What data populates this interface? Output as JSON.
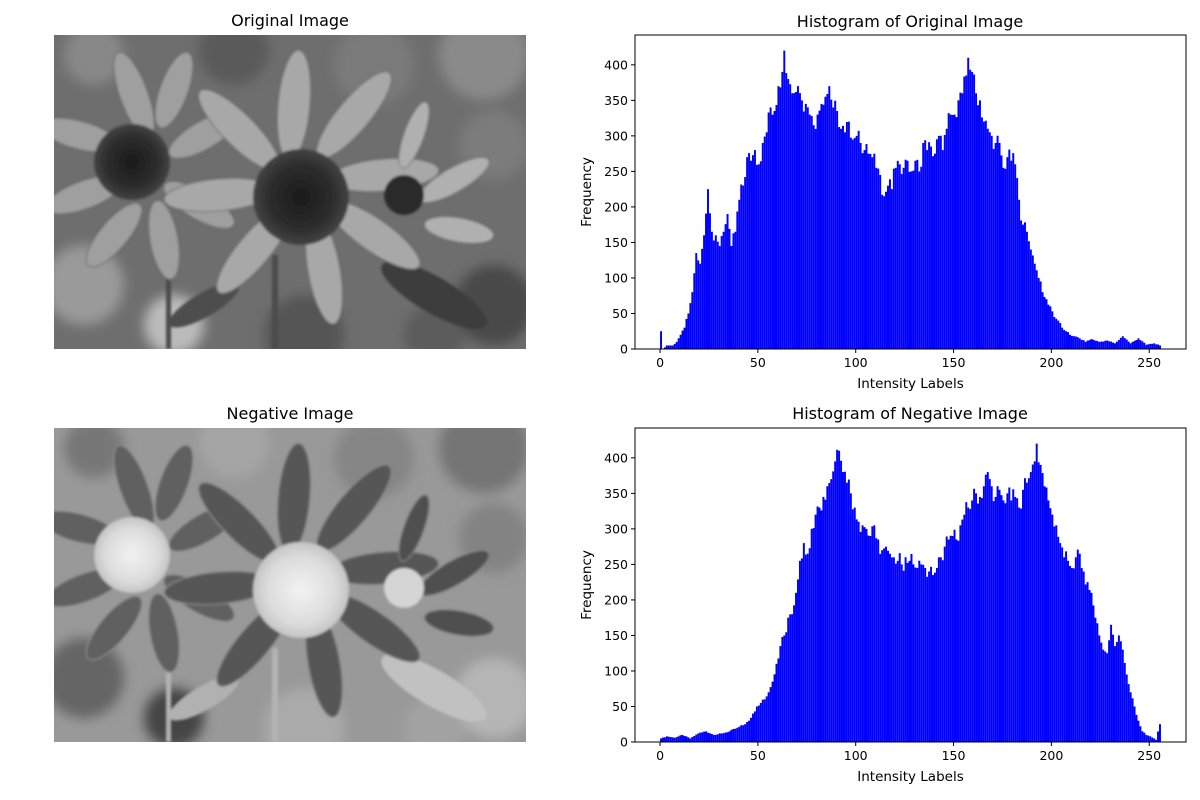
{
  "panels": {
    "original_title": "Original Image",
    "negative_title": "Negative Image",
    "hist_original_title": "Histogram of Original Image",
    "hist_negative_title": "Histogram of Negative Image"
  },
  "colors": {
    "bar": "#0000ff",
    "axis": "#000000"
  },
  "chart_data": [
    {
      "type": "bar",
      "title": "Histogram of Original Image",
      "xlabel": "Intensity Labels",
      "ylabel": "Frequency",
      "xlim": [
        -12.8,
        268.8
      ],
      "ylim": [
        0,
        442
      ],
      "xticks": [
        0,
        50,
        100,
        150,
        200,
        250
      ],
      "yticks": [
        0,
        50,
        100,
        150,
        200,
        250,
        300,
        350,
        400
      ],
      "grid": false,
      "anchors": [
        [
          0,
          25
        ],
        [
          1,
          0
        ],
        [
          3,
          5
        ],
        [
          6,
          5
        ],
        [
          8,
          10
        ],
        [
          10,
          20
        ],
        [
          12,
          30
        ],
        [
          14,
          50
        ],
        [
          16,
          80
        ],
        [
          18,
          135
        ],
        [
          20,
          120
        ],
        [
          22,
          160
        ],
        [
          24,
          225
        ],
        [
          26,
          165
        ],
        [
          28,
          160
        ],
        [
          30,
          145
        ],
        [
          32,
          165
        ],
        [
          34,
          190
        ],
        [
          36,
          145
        ],
        [
          38,
          165
        ],
        [
          40,
          210
        ],
        [
          42,
          230
        ],
        [
          44,
          270
        ],
        [
          46,
          265
        ],
        [
          48,
          280
        ],
        [
          50,
          260
        ],
        [
          52,
          290
        ],
        [
          54,
          305
        ],
        [
          56,
          340
        ],
        [
          58,
          335
        ],
        [
          60,
          370
        ],
        [
          62,
          390
        ],
        [
          63,
          420
        ],
        [
          65,
          380
        ],
        [
          67,
          360
        ],
        [
          70,
          370
        ],
        [
          72,
          350
        ],
        [
          74,
          345
        ],
        [
          76,
          330
        ],
        [
          78,
          315
        ],
        [
          80,
          330
        ],
        [
          82,
          345
        ],
        [
          84,
          355
        ],
        [
          86,
          370
        ],
        [
          88,
          340
        ],
        [
          90,
          335
        ],
        [
          92,
          310
        ],
        [
          94,
          305
        ],
        [
          96,
          320
        ],
        [
          98,
          295
        ],
        [
          100,
          300
        ],
        [
          102,
          290
        ],
        [
          104,
          280
        ],
        [
          106,
          275
        ],
        [
          108,
          270
        ],
        [
          110,
          255
        ],
        [
          112,
          245
        ],
        [
          114,
          215
        ],
        [
          116,
          230
        ],
        [
          118,
          225
        ],
        [
          120,
          255
        ],
        [
          122,
          260
        ],
        [
          124,
          255
        ],
        [
          126,
          265
        ],
        [
          128,
          250
        ],
        [
          130,
          265
        ],
        [
          132,
          250
        ],
        [
          134,
          290
        ],
        [
          136,
          280
        ],
        [
          138,
          285
        ],
        [
          140,
          275
        ],
        [
          142,
          300
        ],
        [
          144,
          280
        ],
        [
          146,
          310
        ],
        [
          148,
          330
        ],
        [
          150,
          330
        ],
        [
          152,
          350
        ],
        [
          154,
          360
        ],
        [
          156,
          385
        ],
        [
          157,
          410
        ],
        [
          159,
          390
        ],
        [
          161,
          360
        ],
        [
          163,
          350
        ],
        [
          165,
          320
        ],
        [
          167,
          310
        ],
        [
          169,
          300
        ],
        [
          171,
          290
        ],
        [
          173,
          290
        ],
        [
          175,
          255
        ],
        [
          177,
          270
        ],
        [
          179,
          265
        ],
        [
          181,
          260
        ],
        [
          183,
          210
        ],
        [
          185,
          175
        ],
        [
          187,
          165
        ],
        [
          189,
          140
        ],
        [
          191,
          120
        ],
        [
          193,
          100
        ],
        [
          195,
          80
        ],
        [
          197,
          70
        ],
        [
          199,
          60
        ],
        [
          201,
          45
        ],
        [
          203,
          40
        ],
        [
          205,
          30
        ],
        [
          207,
          25
        ],
        [
          209,
          20
        ],
        [
          211,
          18
        ],
        [
          214,
          15
        ],
        [
          217,
          10
        ],
        [
          220,
          14
        ],
        [
          224,
          10
        ],
        [
          228,
          12
        ],
        [
          232,
          8
        ],
        [
          236,
          18
        ],
        [
          240,
          8
        ],
        [
          244,
          15
        ],
        [
          248,
          6
        ],
        [
          252,
          8
        ],
        [
          255,
          5
        ]
      ]
    },
    {
      "type": "bar",
      "title": "Histogram of Negative Image",
      "xlabel": "Intensity Labels",
      "ylabel": "Frequency",
      "xlim": [
        -12.8,
        268.8
      ],
      "ylim": [
        0,
        442
      ],
      "xticks": [
        0,
        50,
        100,
        150,
        200,
        250
      ],
      "yticks": [
        0,
        50,
        100,
        150,
        200,
        250,
        300,
        350,
        400
      ],
      "grid": false,
      "anchors": [
        [
          0,
          5
        ],
        [
          3,
          8
        ],
        [
          7,
          6
        ],
        [
          11,
          10
        ],
        [
          15,
          5
        ],
        [
          19,
          12
        ],
        [
          23,
          15
        ],
        [
          27,
          10
        ],
        [
          31,
          12
        ],
        [
          35,
          15
        ],
        [
          39,
          20
        ],
        [
          43,
          25
        ],
        [
          45,
          30
        ],
        [
          47,
          40
        ],
        [
          49,
          50
        ],
        [
          51,
          55
        ],
        [
          53,
          60
        ],
        [
          55,
          70
        ],
        [
          57,
          85
        ],
        [
          59,
          110
        ],
        [
          61,
          135
        ],
        [
          63,
          150
        ],
        [
          65,
          175
        ],
        [
          67,
          180
        ],
        [
          69,
          210
        ],
        [
          71,
          255
        ],
        [
          73,
          280
        ],
        [
          75,
          265
        ],
        [
          77,
          300
        ],
        [
          79,
          320
        ],
        [
          81,
          330
        ],
        [
          83,
          345
        ],
        [
          85,
          360
        ],
        [
          87,
          370
        ],
        [
          89,
          395
        ],
        [
          91,
          410
        ],
        [
          93,
          380
        ],
        [
          95,
          365
        ],
        [
          97,
          350
        ],
        [
          99,
          330
        ],
        [
          101,
          310
        ],
        [
          103,
          305
        ],
        [
          105,
          300
        ],
        [
          107,
          290
        ],
        [
          109,
          305
        ],
        [
          111,
          285
        ],
        [
          113,
          270
        ],
        [
          115,
          275
        ],
        [
          117,
          265
        ],
        [
          119,
          260
        ],
        [
          121,
          255
        ],
        [
          123,
          250
        ],
        [
          125,
          260
        ],
        [
          127,
          255
        ],
        [
          129,
          250
        ],
        [
          131,
          245
        ],
        [
          133,
          250
        ],
        [
          135,
          245
        ],
        [
          137,
          240
        ],
        [
          139,
          235
        ],
        [
          141,
          245
        ],
        [
          143,
          260
        ],
        [
          145,
          275
        ],
        [
          147,
          285
        ],
        [
          149,
          290
        ],
        [
          151,
          285
        ],
        [
          153,
          305
        ],
        [
          155,
          320
        ],
        [
          157,
          330
        ],
        [
          159,
          340
        ],
        [
          161,
          350
        ],
        [
          163,
          345
        ],
        [
          165,
          360
        ],
        [
          167,
          380
        ],
        [
          169,
          360
        ],
        [
          171,
          345
        ],
        [
          173,
          355
        ],
        [
          175,
          340
        ],
        [
          177,
          350
        ],
        [
          179,
          340
        ],
        [
          181,
          345
        ],
        [
          183,
          330
        ],
        [
          185,
          355
        ],
        [
          187,
          365
        ],
        [
          189,
          380
        ],
        [
          191,
          395
        ],
        [
          192,
          420
        ],
        [
          194,
          390
        ],
        [
          196,
          360
        ],
        [
          198,
          340
        ],
        [
          200,
          320
        ],
        [
          202,
          305
        ],
        [
          204,
          280
        ],
        [
          206,
          260
        ],
        [
          208,
          255
        ],
        [
          210,
          245
        ],
        [
          212,
          260
        ],
        [
          214,
          265
        ],
        [
          216,
          240
        ],
        [
          218,
          225
        ],
        [
          220,
          210
        ],
        [
          222,
          175
        ],
        [
          224,
          150
        ],
        [
          226,
          130
        ],
        [
          228,
          125
        ],
        [
          230,
          165
        ],
        [
          232,
          135
        ],
        [
          234,
          150
        ],
        [
          236,
          130
        ],
        [
          238,
          95
        ],
        [
          240,
          70
        ],
        [
          242,
          50
        ],
        [
          244,
          30
        ],
        [
          246,
          15
        ],
        [
          248,
          10
        ],
        [
          250,
          8
        ],
        [
          252,
          5
        ],
        [
          253,
          3
        ],
        [
          255,
          25
        ]
      ]
    }
  ]
}
